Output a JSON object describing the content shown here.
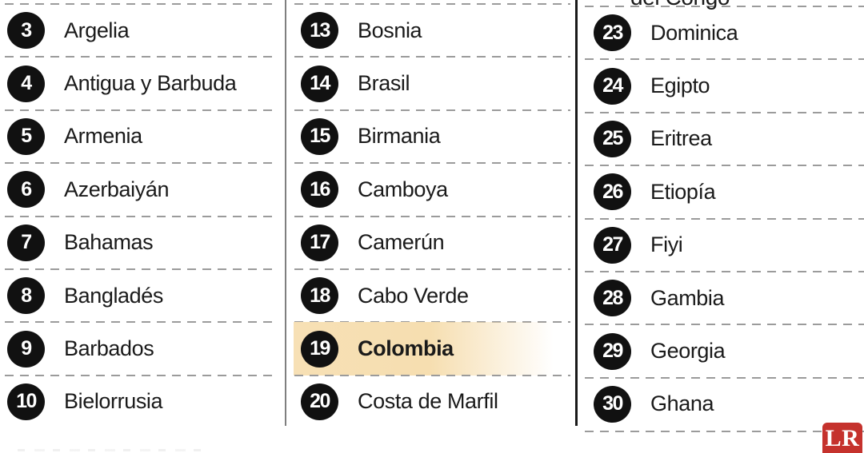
{
  "list": {
    "colors": {
      "highlight": "#f7e0b5",
      "badge_bg": "#111111",
      "badge_text": "#ffffff",
      "divider_gray": "#7f7f7f",
      "divider_black": "#1a1a1a",
      "dash": "#9b9b9b"
    },
    "highlighted_item": {
      "rank": "19",
      "name": "Colombia"
    },
    "columns": [
      {
        "items": [
          {
            "rank": "3",
            "name": "Argelia"
          },
          {
            "rank": "4",
            "name": "Antigua y Barbuda"
          },
          {
            "rank": "5",
            "name": "Armenia"
          },
          {
            "rank": "6",
            "name": "Azerbaiyán"
          },
          {
            "rank": "7",
            "name": "Bahamas"
          },
          {
            "rank": "8",
            "name": "Bangladés"
          },
          {
            "rank": "9",
            "name": "Barbados"
          },
          {
            "rank": "10",
            "name": "Bielorrusia"
          }
        ]
      },
      {
        "items": [
          {
            "rank": "13",
            "name": "Bosnia"
          },
          {
            "rank": "14",
            "name": "Brasil"
          },
          {
            "rank": "15",
            "name": "Birmania"
          },
          {
            "rank": "16",
            "name": "Camboya"
          },
          {
            "rank": "17",
            "name": "Camerún"
          },
          {
            "rank": "18",
            "name": "Cabo Verde"
          },
          {
            "rank": "19",
            "name": "Colombia",
            "highlighted": true
          },
          {
            "rank": "20",
            "name": "Costa de Marfil"
          }
        ]
      },
      {
        "clipped_top_text": "del Congo",
        "items": [
          {
            "rank": "23",
            "name": "Dominica"
          },
          {
            "rank": "24",
            "name": "Egipto"
          },
          {
            "rank": "25",
            "name": "Eritrea"
          },
          {
            "rank": "26",
            "name": "Etiopía"
          },
          {
            "rank": "27",
            "name": "Fiyi"
          },
          {
            "rank": "28",
            "name": "Gambia"
          },
          {
            "rank": "29",
            "name": "Georgia"
          },
          {
            "rank": "30",
            "name": "Ghana"
          }
        ]
      }
    ]
  },
  "branding": {
    "logo_text": "LR",
    "logo_bg": "#c5322d",
    "logo_fg": "#ffffff"
  }
}
